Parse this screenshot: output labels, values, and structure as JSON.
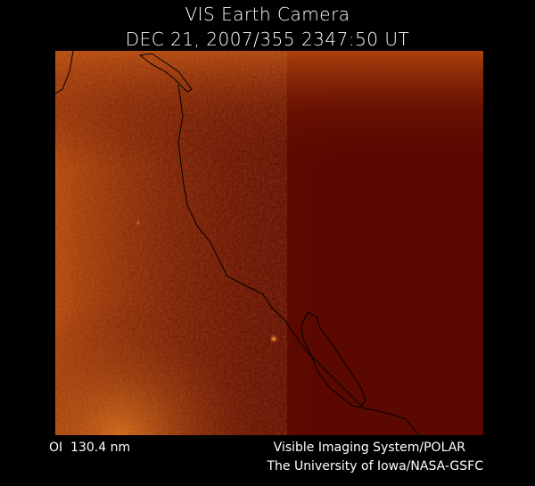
{
  "header": {
    "title": "VIS Earth Camera",
    "timestamp": "DEC 21, 2007/355 2347:50 UT"
  },
  "footer": {
    "wavelength": "OI  130.4 nm",
    "instrument": "Visible Imaging System/POLAR",
    "institution": "The University of Iowa/NASA-GSFC"
  }
}
